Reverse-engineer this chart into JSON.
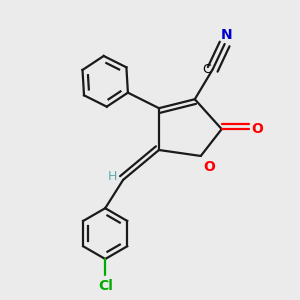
{
  "background_color": "#ebebeb",
  "atom_colors": {
    "C": "#000000",
    "N": "#0000cc",
    "O": "#ff0000",
    "Cl": "#00aa00",
    "H": "#5aacac"
  },
  "bond_color": "#1a1a1a",
  "bond_width": 1.6,
  "figsize": [
    3.0,
    3.0
  ],
  "dpi": 100,
  "xlim": [
    0,
    10
  ],
  "ylim": [
    0,
    10
  ]
}
